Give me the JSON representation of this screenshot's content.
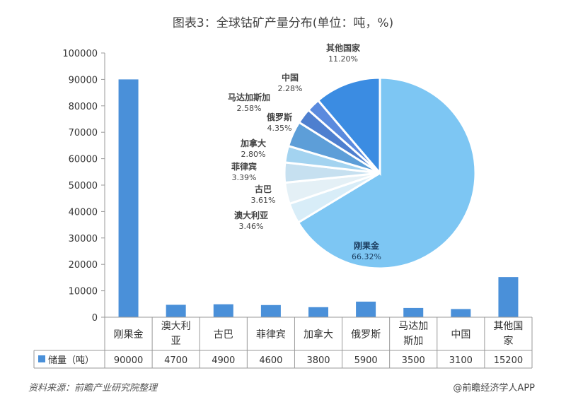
{
  "chart_data": [
    {
      "type": "bar",
      "title": "图表3：全球钴矿产量分布(单位：吨，%)",
      "categories": [
        "刚果金",
        "澳大利亚",
        "古巴",
        "菲律宾",
        "加拿大",
        "俄罗斯",
        "马达加斯加",
        "中国",
        "其他国家"
      ],
      "category_lines": [
        [
          "刚果金"
        ],
        [
          "澳大利",
          "亚"
        ],
        [
          "古巴"
        ],
        [
          "菲律宾"
        ],
        [
          "加拿大"
        ],
        [
          "俄罗斯"
        ],
        [
          "马达加",
          "斯加"
        ],
        [
          "中国"
        ],
        [
          "其他国",
          "家"
        ]
      ],
      "series": [
        {
          "name": "储量（吨）",
          "values": [
            90000,
            4700,
            4900,
            4600,
            3800,
            5900,
            3500,
            3100,
            15200
          ],
          "color": "#4a90d9"
        }
      ],
      "ylim": [
        0,
        100000
      ],
      "yticks": [
        0,
        10000,
        20000,
        30000,
        40000,
        50000,
        60000,
        70000,
        80000,
        90000,
        100000
      ],
      "legend": "data-table",
      "grid": false
    },
    {
      "type": "pie",
      "slices": [
        {
          "label": "刚果金",
          "pct": "66.32%",
          "value": 66.32,
          "color": "#7dc6f3"
        },
        {
          "label": "澳大利亚",
          "pct": "3.46%",
          "value": 3.46,
          "color": "#d8edf8"
        },
        {
          "label": "古巴",
          "pct": "3.61%",
          "value": 3.61,
          "color": "#e4f0f6"
        },
        {
          "label": "菲律宾",
          "pct": "3.39%",
          "value": 3.39,
          "color": "#c6e0f0"
        },
        {
          "label": "加拿大",
          "pct": "2.80%",
          "value": 2.8,
          "color": "#a3d3f0"
        },
        {
          "label": "俄罗斯",
          "pct": "4.35%",
          "value": 4.35,
          "color": "#5d9ed8"
        },
        {
          "label": "马达加斯加",
          "pct": "2.58%",
          "value": 2.58,
          "color": "#4e7fcf"
        },
        {
          "label": "中国",
          "pct": "2.28%",
          "value": 2.28,
          "color": "#5a8ade"
        },
        {
          "label": "其他国家",
          "pct": "11.20%",
          "value": 11.2,
          "color": "#3b8ce2"
        }
      ]
    }
  ],
  "footer": {
    "source": "资料来源：前瞻产业研究院整理",
    "credit": "@前瞻经济学人APP"
  }
}
